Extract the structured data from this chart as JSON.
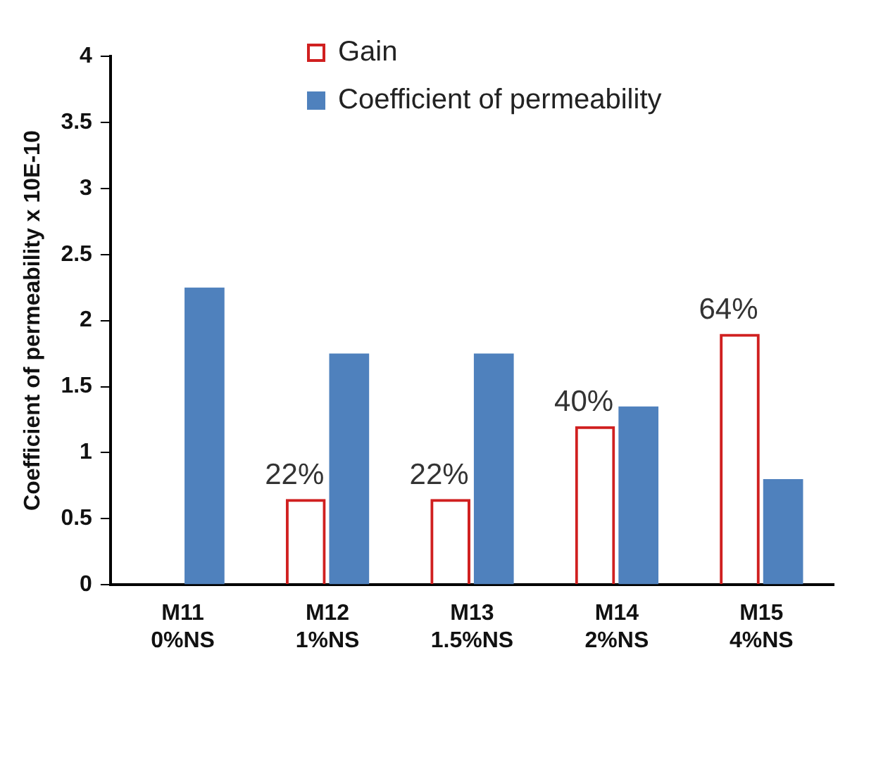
{
  "chart_data": {
    "type": "bar",
    "ylabel": "Coefficient of permeability x 10E-10",
    "categories": [
      "M11 0%NS",
      "M12 1%NS",
      "M13 1.5%NS",
      "M14 2%NS",
      "M15 4%NS"
    ],
    "series": [
      {
        "name": "Gain",
        "color": "#d02020",
        "values": [
          null,
          0.65,
          0.65,
          1.2,
          1.9
        ]
      },
      {
        "name": "Coefficient of permeability",
        "color": "#4f81bd",
        "values": [
          2.25,
          1.75,
          1.75,
          1.35,
          0.8
        ]
      }
    ],
    "annotations": [
      {
        "text": "22%",
        "x": "M12 1%NS",
        "y": 0.65
      },
      {
        "text": "22%",
        "x": "M13 1.5%NS",
        "y": 0.65
      },
      {
        "text": "40%",
        "x": "M14 2%NS",
        "y": 1.2
      },
      {
        "text": "64%",
        "x": "M15 4%NS",
        "y": 1.9
      }
    ],
    "ylim": [
      0,
      4
    ],
    "yticks": [
      0,
      0.5,
      1,
      1.5,
      2,
      2.5,
      3,
      3.5,
      4
    ],
    "grid": false,
    "legend": "top right"
  }
}
